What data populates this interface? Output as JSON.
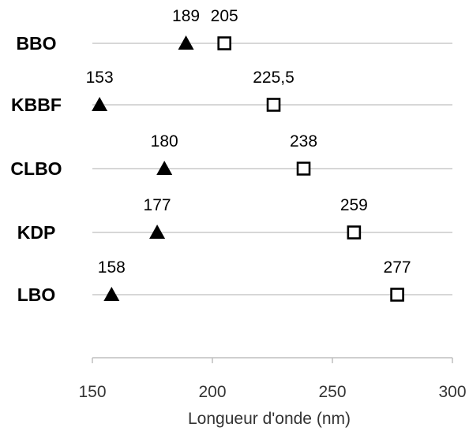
{
  "chart_data": {
    "type": "scatter",
    "title": "",
    "xlabel": "Longueur d'onde (nm)",
    "ylabel": "",
    "xlim": [
      150,
      300
    ],
    "xticks": [
      150,
      200,
      250,
      300
    ],
    "grid": false,
    "categories": [
      "BBO",
      "KBBF",
      "CLBO",
      "KDP",
      "LBO"
    ],
    "series": [
      {
        "marker": "filled-triangle",
        "color": "#000000",
        "values": [
          189,
          153,
          180,
          177,
          158
        ],
        "labels": [
          "189",
          "153",
          "180",
          "177",
          "158"
        ]
      },
      {
        "marker": "open-square",
        "color": "#000000",
        "values": [
          205,
          225.5,
          238,
          259,
          277
        ],
        "labels": [
          "205",
          "225,5",
          "238",
          "259",
          "277"
        ]
      }
    ]
  }
}
